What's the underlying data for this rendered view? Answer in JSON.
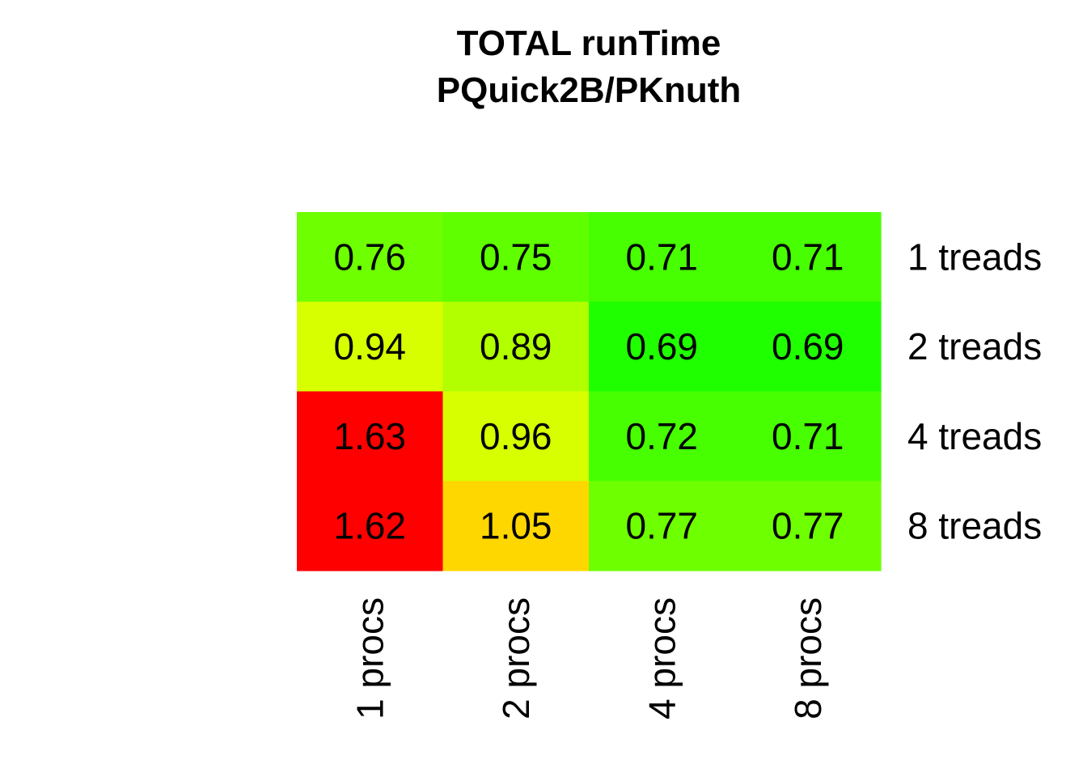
{
  "chart_data": {
    "type": "heatmap",
    "title_lines": [
      "TOTAL  runTime",
      "PQuick2B/PKnuth"
    ],
    "columns": [
      "1 procs",
      "2 procs",
      "4 procs",
      "8 procs"
    ],
    "rows": [
      "1 treads",
      "2 treads",
      "4 treads",
      "8 treads"
    ],
    "values": [
      [
        "0.76",
        "0.75",
        "0.71",
        "0.71"
      ],
      [
        "0.94",
        "0.89",
        "0.69",
        "0.69"
      ],
      [
        "1.63",
        "0.96",
        "0.72",
        "0.71"
      ],
      [
        "1.62",
        "1.05",
        "0.77",
        "0.77"
      ]
    ],
    "colors": [
      [
        "#6eff00",
        "#5fff00",
        "#47ff00",
        "#47ff00"
      ],
      [
        "#d7ff00",
        "#b2ff00",
        "#1fff00",
        "#1fff00"
      ],
      [
        "#ff0000",
        "#d7ff00",
        "#47ff00",
        "#47ff00"
      ],
      [
        "#ff0000",
        "#ffd700",
        "#6eff00",
        "#6eff00"
      ]
    ],
    "color_scale": "green (low) to red (high)"
  }
}
